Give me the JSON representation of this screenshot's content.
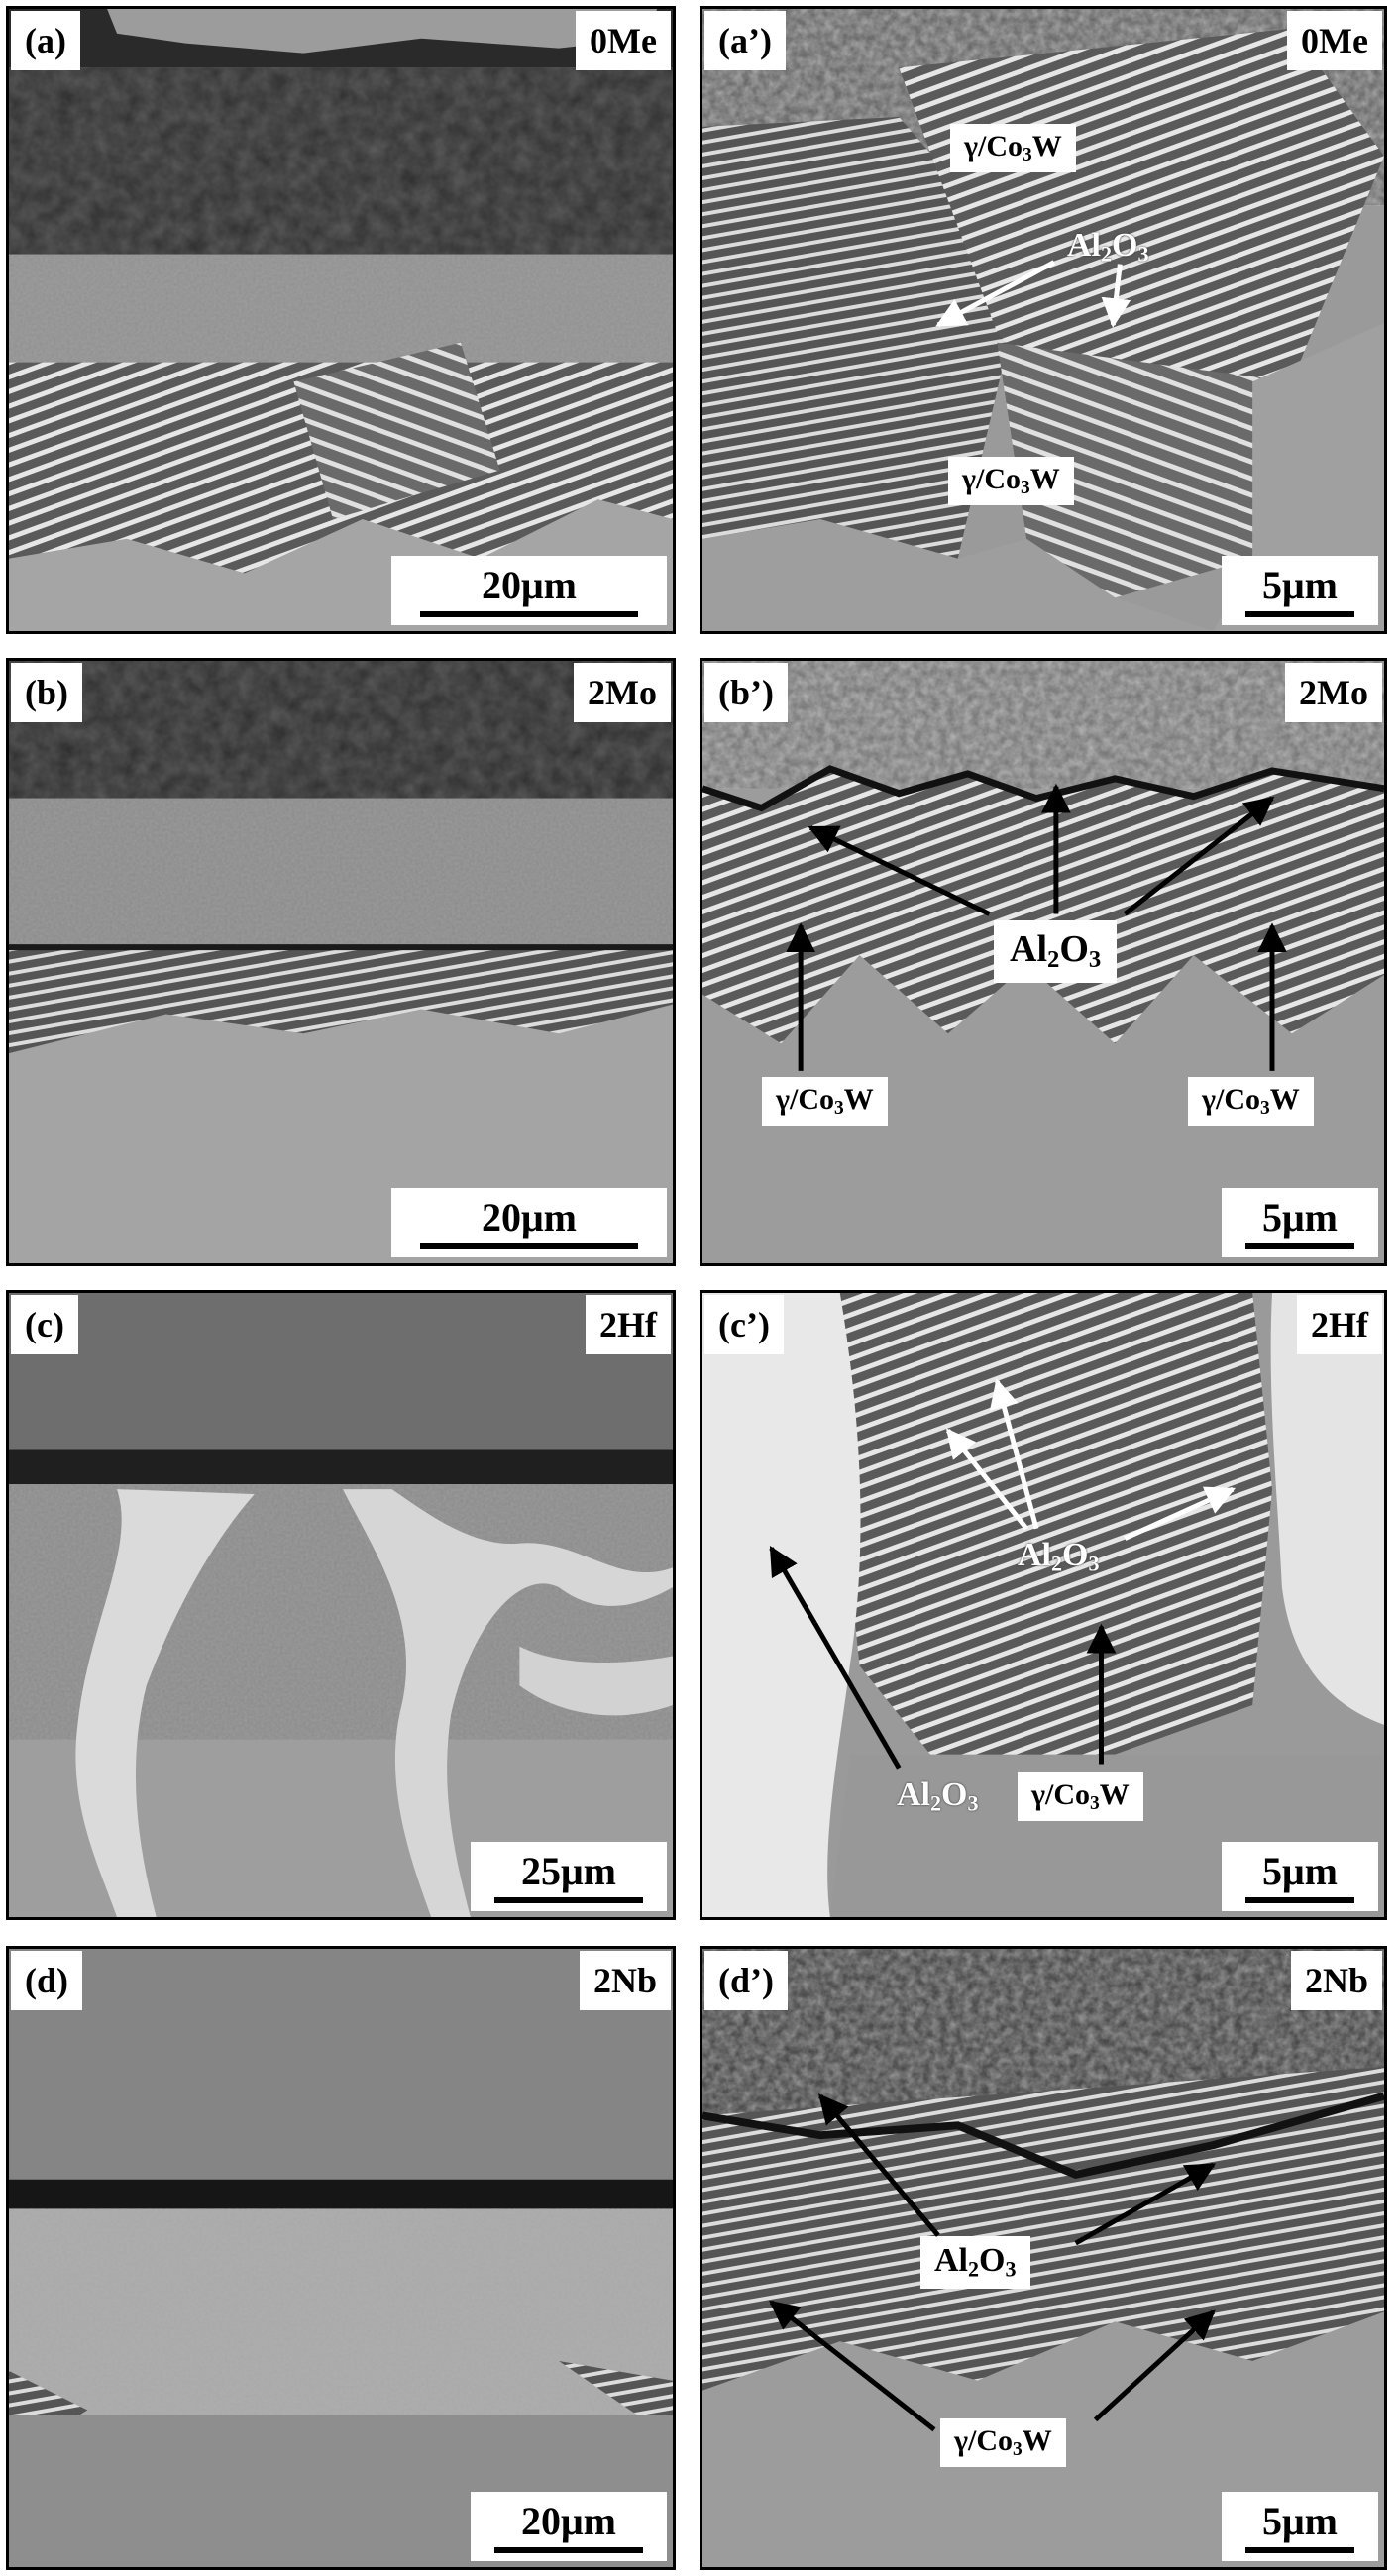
{
  "panels": [
    {
      "id": "a",
      "label": "(a)",
      "composition": "0Me",
      "scale": "20μm"
    },
    {
      "id": "a2",
      "label": "(a’)",
      "composition": "0Me",
      "scale": "5μm",
      "annotations": [
        "γ/Co",
        "3",
        "W",
        "Al",
        "2",
        "O",
        "3",
        "γ/Co",
        "3",
        "W"
      ]
    },
    {
      "id": "b",
      "label": "(b)",
      "composition": "2Mo",
      "scale": "20μm"
    },
    {
      "id": "b2",
      "label": "(b’)",
      "composition": "2Mo",
      "scale": "5μm"
    },
    {
      "id": "c",
      "label": "(c)",
      "composition": "2Hf",
      "scale": "25μm"
    },
    {
      "id": "c2",
      "label": "(c’)",
      "composition": "2Hf",
      "scale": "5μm"
    },
    {
      "id": "d",
      "label": "(d)",
      "composition": "2Nb",
      "scale": "20μm"
    },
    {
      "id": "d2",
      "label": "(d’)",
      "composition": "2Nb",
      "scale": "5μm"
    }
  ],
  "phase_labels": {
    "gamma_prefix": "γ/Co",
    "gamma_sub": "3",
    "gamma_suffix": "W",
    "alumina_prefix": "Al",
    "alumina_sub1": "2",
    "alumina_mid": "O",
    "alumina_sub2": "3"
  },
  "colors": {
    "border": "#000000",
    "label_bg": "#ffffff",
    "arrow_black": "#000000",
    "arrow_white": "#ffffff"
  }
}
